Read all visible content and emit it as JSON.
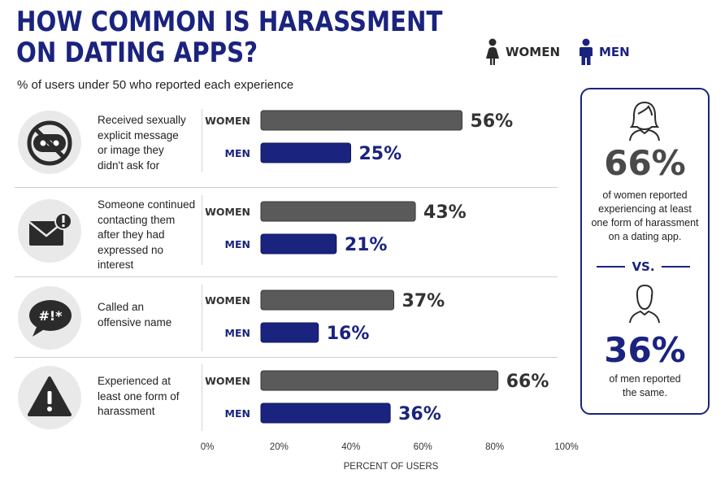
{
  "header": {
    "title_line1": "HOW COMMON IS HARASSMENT",
    "title_line2": "ON DATING APPS?",
    "subtitle": "% of users under 50 who reported each experience"
  },
  "legend": [
    {
      "label": "WOMEN",
      "color": "#5a5a5a",
      "icon": "woman-icon"
    },
    {
      "label": "MEN",
      "color": "#1a237e",
      "icon": "man-icon"
    }
  ],
  "categories": [
    {
      "label": "Received sexually explicit message or image they didn't ask for",
      "lines": [
        "Received sexually",
        "explicit message",
        "or image they",
        "didn't ask for"
      ],
      "icon": "no-message-icon"
    },
    {
      "label": "Someone continued contacting them after they had expressed no interest",
      "lines": [
        "Someone continued",
        "contacting them",
        "after they had",
        "expressed no",
        "interest"
      ],
      "icon": "envelope-alert-icon"
    },
    {
      "label": "Called an offensive name",
      "lines": [
        "Called an",
        "offensive name"
      ],
      "icon": "swear-bubble-icon"
    },
    {
      "label": "Experienced at least one form of harassment",
      "lines": [
        "Experienced at",
        "least one form of",
        "harassment"
      ],
      "icon": "warning-icon"
    }
  ],
  "chart_data": {
    "type": "bar",
    "orientation": "horizontal",
    "categories": [
      "Received sexually explicit message or image they didn't ask for",
      "Someone continued contacting them after they had expressed no interest",
      "Called an offensive name",
      "Experienced at least one form of harassment"
    ],
    "series": [
      {
        "name": "WOMEN",
        "values": [
          56,
          43,
          37,
          66
        ],
        "color": "#5a5a5a"
      },
      {
        "name": "MEN",
        "values": [
          25,
          21,
          16,
          36
        ],
        "color": "#1a237e"
      }
    ],
    "data_labels": {
      "women": [
        "56%",
        "43%",
        "37%",
        "66%"
      ],
      "men": [
        "25%",
        "21%",
        "16%",
        "36%"
      ]
    },
    "xlim": [
      0,
      100
    ],
    "xticks": [
      "0%",
      "20%",
      "40%",
      "60%",
      "80%",
      "100%"
    ],
    "xlabel": "PERCENT OF USERS",
    "ylabel": "",
    "title": "HOW COMMON IS HARASSMENT ON DATING APPS?",
    "subtitle": "% of users under 50 who reported each experience",
    "legend_position": "top-right",
    "grid": false
  },
  "callout": {
    "women_value": "66%",
    "women_text_lines": [
      "of women reported",
      "experiencing at least",
      "one form of harassment",
      "on a dating app."
    ],
    "vs": "VS.",
    "men_value": "36%",
    "men_text_lines": [
      "of men reported",
      "the same."
    ]
  }
}
